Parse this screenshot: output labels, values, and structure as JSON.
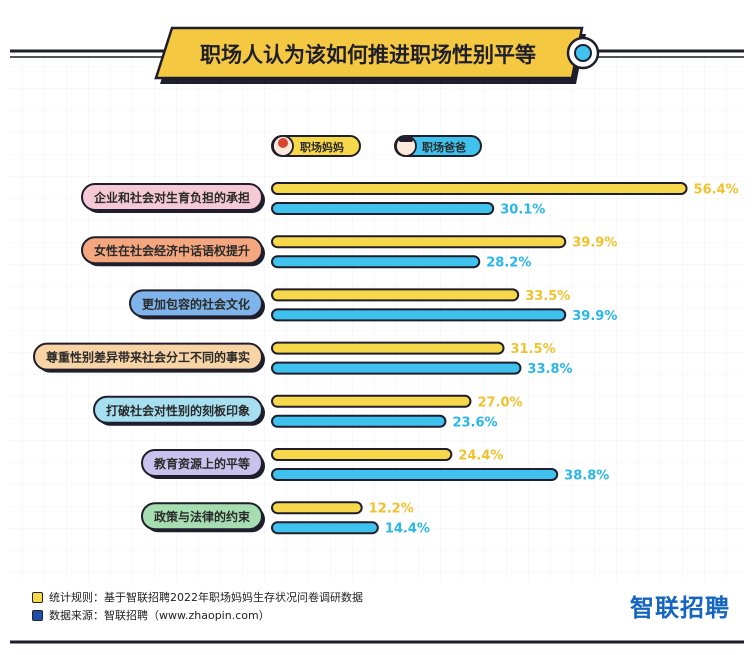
{
  "title": "职场人认为该如何推进职场性别平等",
  "colors": {
    "mom": "#f7d84a",
    "dad": "#3fc3ee",
    "mom_text": "#f2c12e",
    "dad_text": "#2ab6e8",
    "title_bg": "#f5c842",
    "outline": "#1e1e2c"
  },
  "chart_data": {
    "type": "bar",
    "orientation": "horizontal",
    "title": "职场人认为该如何推进职场性别平等",
    "legend_position": "top",
    "xlim": [
      0,
      60
    ],
    "unit": "%",
    "categories": [
      "企业和社会对生育负担的承担",
      "女性在社会经济中话语权提升",
      "更加包容的社会文化",
      "尊重性别差异带来社会分工不同的事实",
      "打破社会对性别的刻板印象",
      "教育资源上的平等",
      "政策与法律的约束"
    ],
    "category_colors": [
      "#f6c9d6",
      "#f4a77e",
      "#7fb4ea",
      "#f8d3a5",
      "#a6dff0",
      "#c9c2ec",
      "#a6deb2"
    ],
    "series": [
      {
        "name": "职场妈妈",
        "color": "#f7d84a",
        "values": [
          56.4,
          39.9,
          33.5,
          31.5,
          27.0,
          24.4,
          12.2
        ],
        "labels": [
          "56.4%",
          "39.9%",
          "33.5%",
          "31.5%",
          "27.0%",
          "24.4%",
          "12.2%"
        ]
      },
      {
        "name": "职场爸爸",
        "color": "#3fc3ee",
        "values": [
          30.1,
          28.2,
          39.9,
          33.8,
          23.6,
          38.8,
          14.4
        ],
        "labels": [
          "30.1%",
          "28.2%",
          "39.9%",
          "33.8%",
          "23.6%",
          "38.8%",
          "14.4%"
        ]
      }
    ]
  },
  "footer": {
    "rule_label": "统计规则：基于智联招聘2022年职场妈妈生存状况问卷调研数据",
    "source_label": "数据来源：智联招聘（www.zhaopin.com）",
    "rule_color": "#f7d84a",
    "source_color": "#1f4ea8",
    "brand": "智联招聘"
  }
}
